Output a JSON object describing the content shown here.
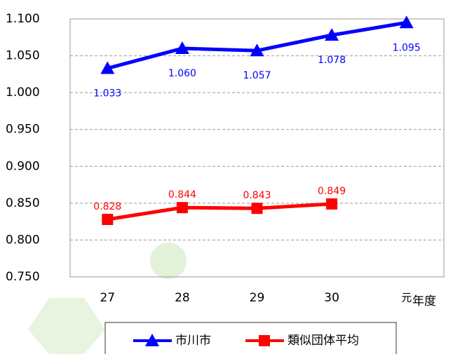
{
  "chart_data": {
    "type": "line",
    "categories": [
      "27",
      "28",
      "29",
      "30",
      "元"
    ],
    "x_label": "年度",
    "series": [
      {
        "name": "市川市",
        "color": "#0000ff",
        "marker": "triangle",
        "values": [
          1.033,
          1.06,
          1.057,
          1.078,
          1.095
        ],
        "value_labels": [
          "1.033",
          "1.060",
          "1.057",
          "1.078",
          "1.095"
        ]
      },
      {
        "name": "類似団体平均",
        "color": "#ff0000",
        "marker": "square",
        "values": [
          0.828,
          0.844,
          0.843,
          0.849,
          null
        ],
        "value_labels": [
          "0.828",
          "0.844",
          "0.843",
          "0.849",
          null
        ]
      }
    ],
    "ylim": [
      0.75,
      1.1
    ],
    "yticks": [
      {
        "value": 0.75,
        "label": "0.750"
      },
      {
        "value": 0.8,
        "label": "0.800"
      },
      {
        "value": 0.85,
        "label": "0.850"
      },
      {
        "value": 0.9,
        "label": "0.900"
      },
      {
        "value": 0.95,
        "label": "0.950"
      },
      {
        "value": 1.0,
        "label": "1.000"
      },
      {
        "value": 1.05,
        "label": "1.050"
      },
      {
        "value": 1.1,
        "label": "1.100"
      }
    ],
    "grid": true,
    "legend": "bottom"
  }
}
